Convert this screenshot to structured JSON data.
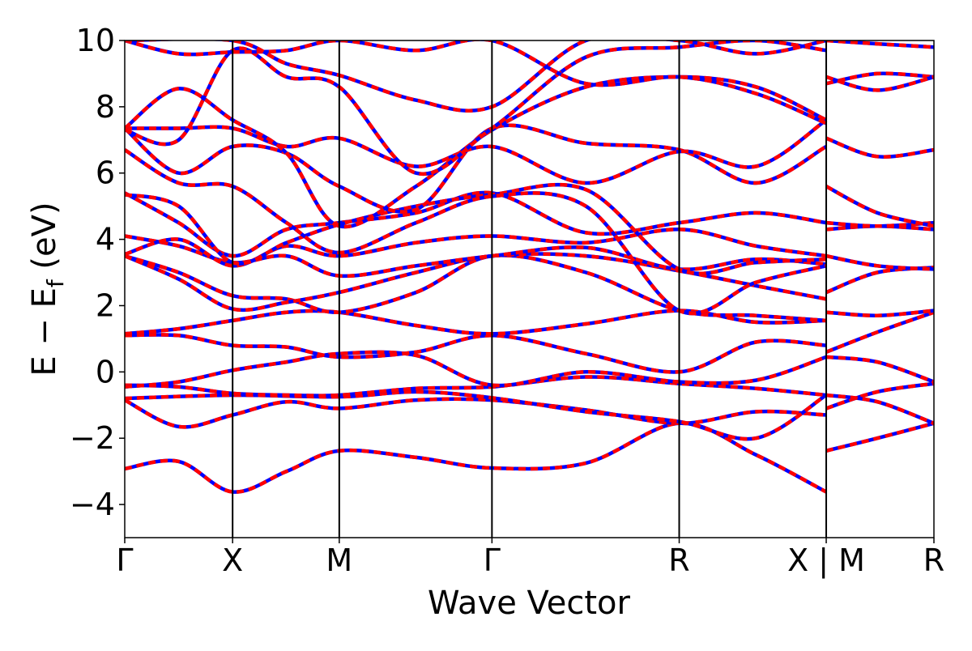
{
  "chart_data": {
    "type": "line",
    "xlabel": "Wave Vector",
    "ylabel": "E − E",
    "ylabel_sub": "f",
    "ylabel_unit": " (eV)",
    "ylim": [
      -5,
      10
    ],
    "yticks": [
      -4,
      -2,
      0,
      2,
      4,
      6,
      8,
      10
    ],
    "ytick_labels": [
      "−4",
      "−2",
      "0",
      "2",
      "4",
      "6",
      "8",
      "10"
    ],
    "xlim": [
      0,
      1
    ],
    "kpoints": [
      {
        "label": "Γ",
        "x": 0.0
      },
      {
        "label": "X",
        "x": 0.1333
      },
      {
        "label": "M",
        "x": 0.2651
      },
      {
        "label": "Γ",
        "x": 0.4538
      },
      {
        "label": "R",
        "x": 0.6852
      },
      {
        "label": "X | M",
        "x": 0.8669
      },
      {
        "label": "R",
        "x": 1.0
      }
    ],
    "grid": false,
    "legend": "none",
    "colors": {
      "series_a": "#ff0000",
      "series_b": "#0000ff",
      "kpath_lines": "#000000"
    },
    "series": [
      {
        "values": [
          [
            0.0,
            -2.92
          ],
          [
            0.0667,
            -2.7
          ],
          [
            0.1333,
            -3.62
          ],
          [
            0.2,
            -3.0
          ],
          [
            0.2651,
            -2.38
          ],
          [
            0.36,
            -2.58
          ],
          [
            0.4538,
            -2.9
          ],
          [
            0.57,
            -2.75
          ],
          [
            0.6852,
            -1.55
          ],
          [
            0.78,
            -2.5
          ],
          [
            0.8669,
            -3.62
          ]
        ]
      },
      {
        "values": [
          [
            0.8669,
            -2.38
          ],
          [
            0.93,
            -2.0
          ],
          [
            1.0,
            -1.55
          ]
        ]
      },
      {
        "values": [
          [
            0.0,
            -0.85
          ],
          [
            0.0667,
            -1.65
          ],
          [
            0.1333,
            -1.3
          ],
          [
            0.2,
            -0.9
          ],
          [
            0.2651,
            -1.1
          ],
          [
            0.36,
            -0.85
          ],
          [
            0.4538,
            -0.85
          ],
          [
            0.57,
            -1.15
          ],
          [
            0.6852,
            -1.55
          ],
          [
            0.78,
            -1.2
          ],
          [
            0.8669,
            -1.3
          ]
        ]
      },
      {
        "values": [
          [
            0.8669,
            -1.1
          ],
          [
            0.93,
            -0.6
          ],
          [
            1.0,
            -0.35
          ]
        ]
      },
      {
        "values": [
          [
            0.0,
            -0.8
          ],
          [
            0.1333,
            -0.7
          ],
          [
            0.2651,
            -0.75
          ],
          [
            0.36,
            -0.6
          ],
          [
            0.4538,
            -0.78
          ],
          [
            0.57,
            -1.2
          ],
          [
            0.6852,
            -1.5
          ],
          [
            0.78,
            -2.0
          ],
          [
            0.8669,
            -0.7
          ]
        ]
      },
      {
        "values": [
          [
            0.8669,
            -0.7
          ],
          [
            0.93,
            -0.9
          ],
          [
            1.0,
            -1.55
          ]
        ]
      },
      {
        "values": [
          [
            0.0,
            -0.4
          ],
          [
            0.0667,
            -0.45
          ],
          [
            0.1333,
            -0.65
          ],
          [
            0.2,
            -0.7
          ],
          [
            0.2651,
            -0.7
          ],
          [
            0.36,
            -0.5
          ],
          [
            0.4538,
            -0.45
          ],
          [
            0.57,
            -0.15
          ],
          [
            0.6852,
            -0.35
          ],
          [
            0.78,
            -0.5
          ],
          [
            0.8669,
            -0.7
          ]
        ]
      },
      {
        "values": [
          [
            0.0,
            -0.45
          ],
          [
            0.0667,
            -0.3
          ],
          [
            0.1333,
            0.05
          ],
          [
            0.2,
            0.3
          ],
          [
            0.2651,
            0.55
          ],
          [
            0.36,
            0.5
          ],
          [
            0.4538,
            -0.4
          ],
          [
            0.57,
            0.0
          ],
          [
            0.6852,
            -0.3
          ],
          [
            0.78,
            -0.25
          ],
          [
            0.8669,
            0.45
          ]
        ]
      },
      {
        "values": [
          [
            0.8669,
            0.45
          ],
          [
            0.93,
            0.3
          ],
          [
            1.0,
            -0.3
          ]
        ]
      },
      {
        "values": [
          [
            0.0,
            1.1
          ],
          [
            0.0667,
            1.1
          ],
          [
            0.1333,
            0.8
          ],
          [
            0.2,
            0.75
          ],
          [
            0.2651,
            0.45
          ],
          [
            0.36,
            0.6
          ],
          [
            0.4538,
            1.1
          ],
          [
            0.57,
            0.55
          ],
          [
            0.6852,
            0.0
          ],
          [
            0.78,
            0.9
          ],
          [
            0.8669,
            0.8
          ]
        ]
      },
      {
        "values": [
          [
            0.8669,
            0.6
          ],
          [
            0.93,
            1.2
          ],
          [
            1.0,
            1.8
          ]
        ]
      },
      {
        "values": [
          [
            0.0,
            1.15
          ],
          [
            0.0667,
            1.3
          ],
          [
            0.1333,
            1.55
          ],
          [
            0.2,
            1.8
          ],
          [
            0.2651,
            1.8
          ],
          [
            0.36,
            1.4
          ],
          [
            0.4538,
            1.15
          ],
          [
            0.57,
            1.45
          ],
          [
            0.6852,
            1.85
          ],
          [
            0.78,
            1.5
          ],
          [
            0.8669,
            1.55
          ]
        ]
      },
      {
        "values": [
          [
            0.8669,
            1.8
          ],
          [
            0.93,
            1.7
          ],
          [
            1.0,
            1.85
          ]
        ]
      },
      {
        "values": [
          [
            0.0,
            3.5
          ],
          [
            0.0667,
            3.0
          ],
          [
            0.1333,
            2.3
          ],
          [
            0.2,
            2.2
          ],
          [
            0.2651,
            1.8
          ],
          [
            0.36,
            2.4
          ],
          [
            0.4538,
            3.5
          ],
          [
            0.57,
            3.0
          ],
          [
            0.6852,
            1.85
          ],
          [
            0.78,
            1.7
          ],
          [
            0.8669,
            1.55
          ]
        ]
      },
      {
        "values": [
          [
            0.0,
            3.5
          ],
          [
            0.0667,
            2.8
          ],
          [
            0.1333,
            1.9
          ],
          [
            0.2,
            2.1
          ],
          [
            0.2651,
            2.4
          ],
          [
            0.36,
            3.0
          ],
          [
            0.4538,
            3.5
          ],
          [
            0.57,
            3.5
          ],
          [
            0.6852,
            3.05
          ],
          [
            0.78,
            2.6
          ],
          [
            0.8669,
            2.2
          ]
        ]
      },
      {
        "values": [
          [
            0.8669,
            2.4
          ],
          [
            0.93,
            3.0
          ],
          [
            1.0,
            3.15
          ]
        ]
      },
      {
        "values": [
          [
            0.0,
            4.1
          ],
          [
            0.0667,
            3.8
          ],
          [
            0.1333,
            3.3
          ],
          [
            0.2,
            3.5
          ],
          [
            0.2651,
            2.9
          ],
          [
            0.36,
            3.2
          ],
          [
            0.4538,
            3.5
          ],
          [
            0.57,
            3.75
          ],
          [
            0.6852,
            3.1
          ],
          [
            0.78,
            3.4
          ],
          [
            0.8669,
            3.25
          ]
        ]
      },
      {
        "values": [
          [
            0.8669,
            3.5
          ],
          [
            0.93,
            3.2
          ],
          [
            1.0,
            3.1
          ]
        ]
      },
      {
        "values": [
          [
            0.0,
            3.55
          ],
          [
            0.0667,
            4.0
          ],
          [
            0.1333,
            3.2
          ],
          [
            0.2,
            3.8
          ],
          [
            0.2651,
            3.5
          ],
          [
            0.36,
            3.9
          ],
          [
            0.4538,
            4.1
          ],
          [
            0.57,
            3.9
          ],
          [
            0.6852,
            4.3
          ],
          [
            0.78,
            3.8
          ],
          [
            0.8669,
            3.5
          ]
        ]
      },
      {
        "values": [
          [
            0.8669,
            4.3
          ],
          [
            0.93,
            4.4
          ],
          [
            1.0,
            4.3
          ]
        ]
      },
      {
        "values": [
          [
            0.0,
            5.4
          ],
          [
            0.0667,
            4.5
          ],
          [
            0.1333,
            3.5
          ],
          [
            0.2,
            4.3
          ],
          [
            0.2651,
            4.5
          ],
          [
            0.36,
            4.8
          ],
          [
            0.4538,
            5.4
          ],
          [
            0.57,
            4.2
          ],
          [
            0.6852,
            4.5
          ],
          [
            0.78,
            4.8
          ],
          [
            0.8669,
            4.5
          ]
        ]
      },
      {
        "values": [
          [
            0.8669,
            4.5
          ],
          [
            0.93,
            4.4
          ],
          [
            1.0,
            4.5
          ]
        ]
      },
      {
        "values": [
          [
            0.0,
            5.35
          ],
          [
            0.0667,
            5.0
          ],
          [
            0.1333,
            3.3
          ],
          [
            0.2,
            3.9
          ],
          [
            0.2651,
            4.45
          ],
          [
            0.36,
            5.0
          ],
          [
            0.4538,
            5.35
          ],
          [
            0.57,
            5.5
          ],
          [
            0.6852,
            3.1
          ],
          [
            0.78,
            3.3
          ],
          [
            0.8669,
            3.4
          ]
        ]
      },
      {
        "values": [
          [
            0.0,
            6.7
          ],
          [
            0.0667,
            5.7
          ],
          [
            0.1333,
            5.6
          ],
          [
            0.2,
            4.5
          ],
          [
            0.2651,
            3.6
          ],
          [
            0.36,
            4.5
          ],
          [
            0.4538,
            5.3
          ],
          [
            0.57,
            5.0
          ],
          [
            0.6852,
            1.85
          ],
          [
            0.78,
            2.7
          ],
          [
            0.8669,
            3.2
          ]
        ]
      },
      {
        "values": [
          [
            0.0,
            7.35
          ],
          [
            0.0667,
            6.0
          ],
          [
            0.1333,
            6.8
          ],
          [
            0.2,
            6.6
          ],
          [
            0.2651,
            5.6
          ],
          [
            0.36,
            4.9
          ],
          [
            0.4538,
            7.35
          ],
          [
            0.57,
            6.9
          ],
          [
            0.6852,
            6.7
          ],
          [
            0.78,
            5.7
          ],
          [
            0.8669,
            6.8
          ]
        ]
      },
      {
        "values": [
          [
            0.8669,
            5.6
          ],
          [
            0.93,
            4.8
          ],
          [
            1.0,
            4.4
          ]
        ]
      },
      {
        "values": [
          [
            0.0,
            7.35
          ],
          [
            0.0667,
            7.35
          ],
          [
            0.1333,
            7.35
          ],
          [
            0.2,
            6.8
          ],
          [
            0.2651,
            7.05
          ],
          [
            0.36,
            6.2
          ],
          [
            0.4538,
            6.8
          ],
          [
            0.57,
            5.7
          ],
          [
            0.6852,
            6.65
          ],
          [
            0.78,
            6.2
          ],
          [
            0.8669,
            7.6
          ]
        ]
      },
      {
        "values": [
          [
            0.8669,
            7.05
          ],
          [
            0.93,
            6.5
          ],
          [
            1.0,
            6.7
          ]
        ]
      },
      {
        "values": [
          [
            0.0,
            7.35
          ],
          [
            0.0667,
            8.55
          ],
          [
            0.1333,
            7.6
          ],
          [
            0.2,
            6.6
          ],
          [
            0.2651,
            4.4
          ],
          [
            0.36,
            5.6
          ],
          [
            0.4538,
            7.3
          ],
          [
            0.57,
            8.6
          ],
          [
            0.6852,
            8.9
          ],
          [
            0.78,
            8.6
          ],
          [
            0.8669,
            7.6
          ]
        ]
      },
      {
        "values": [
          [
            0.0,
            7.3
          ],
          [
            0.0667,
            7.0
          ],
          [
            0.1333,
            9.7
          ],
          [
            0.2,
            8.9
          ],
          [
            0.2651,
            8.6
          ],
          [
            0.36,
            6.0
          ],
          [
            0.4538,
            7.35
          ],
          [
            0.57,
            9.5
          ],
          [
            0.6852,
            9.8
          ],
          [
            0.78,
            10.0
          ],
          [
            0.8669,
            9.7
          ]
        ]
      },
      {
        "values": [
          [
            0.8669,
            8.7
          ],
          [
            0.93,
            9.0
          ],
          [
            1.0,
            8.9
          ]
        ]
      },
      {
        "values": [
          [
            0.0,
            10.0
          ],
          [
            0.0667,
            9.6
          ],
          [
            0.1333,
            9.65
          ],
          [
            0.2,
            9.7
          ],
          [
            0.2651,
            10.0
          ],
          [
            0.36,
            9.7
          ],
          [
            0.4538,
            10.0
          ],
          [
            0.57,
            8.7
          ],
          [
            0.6852,
            8.9
          ],
          [
            0.78,
            8.4
          ],
          [
            0.8669,
            7.5
          ]
        ]
      },
      {
        "values": [
          [
            0.8669,
            8.9
          ],
          [
            0.93,
            8.5
          ],
          [
            1.0,
            8.9
          ]
        ]
      },
      {
        "values": [
          [
            0.0,
            10.0
          ],
          [
            0.1333,
            10.0
          ],
          [
            0.2,
            9.3
          ],
          [
            0.2651,
            8.95
          ],
          [
            0.36,
            8.2
          ],
          [
            0.4538,
            8.0
          ],
          [
            0.57,
            10.0
          ],
          [
            0.6852,
            10.0
          ],
          [
            0.78,
            9.6
          ],
          [
            0.8669,
            10.0
          ]
        ]
      },
      {
        "values": [
          [
            0.8669,
            10.0
          ],
          [
            0.93,
            9.9
          ],
          [
            1.0,
            9.8
          ]
        ]
      }
    ]
  }
}
